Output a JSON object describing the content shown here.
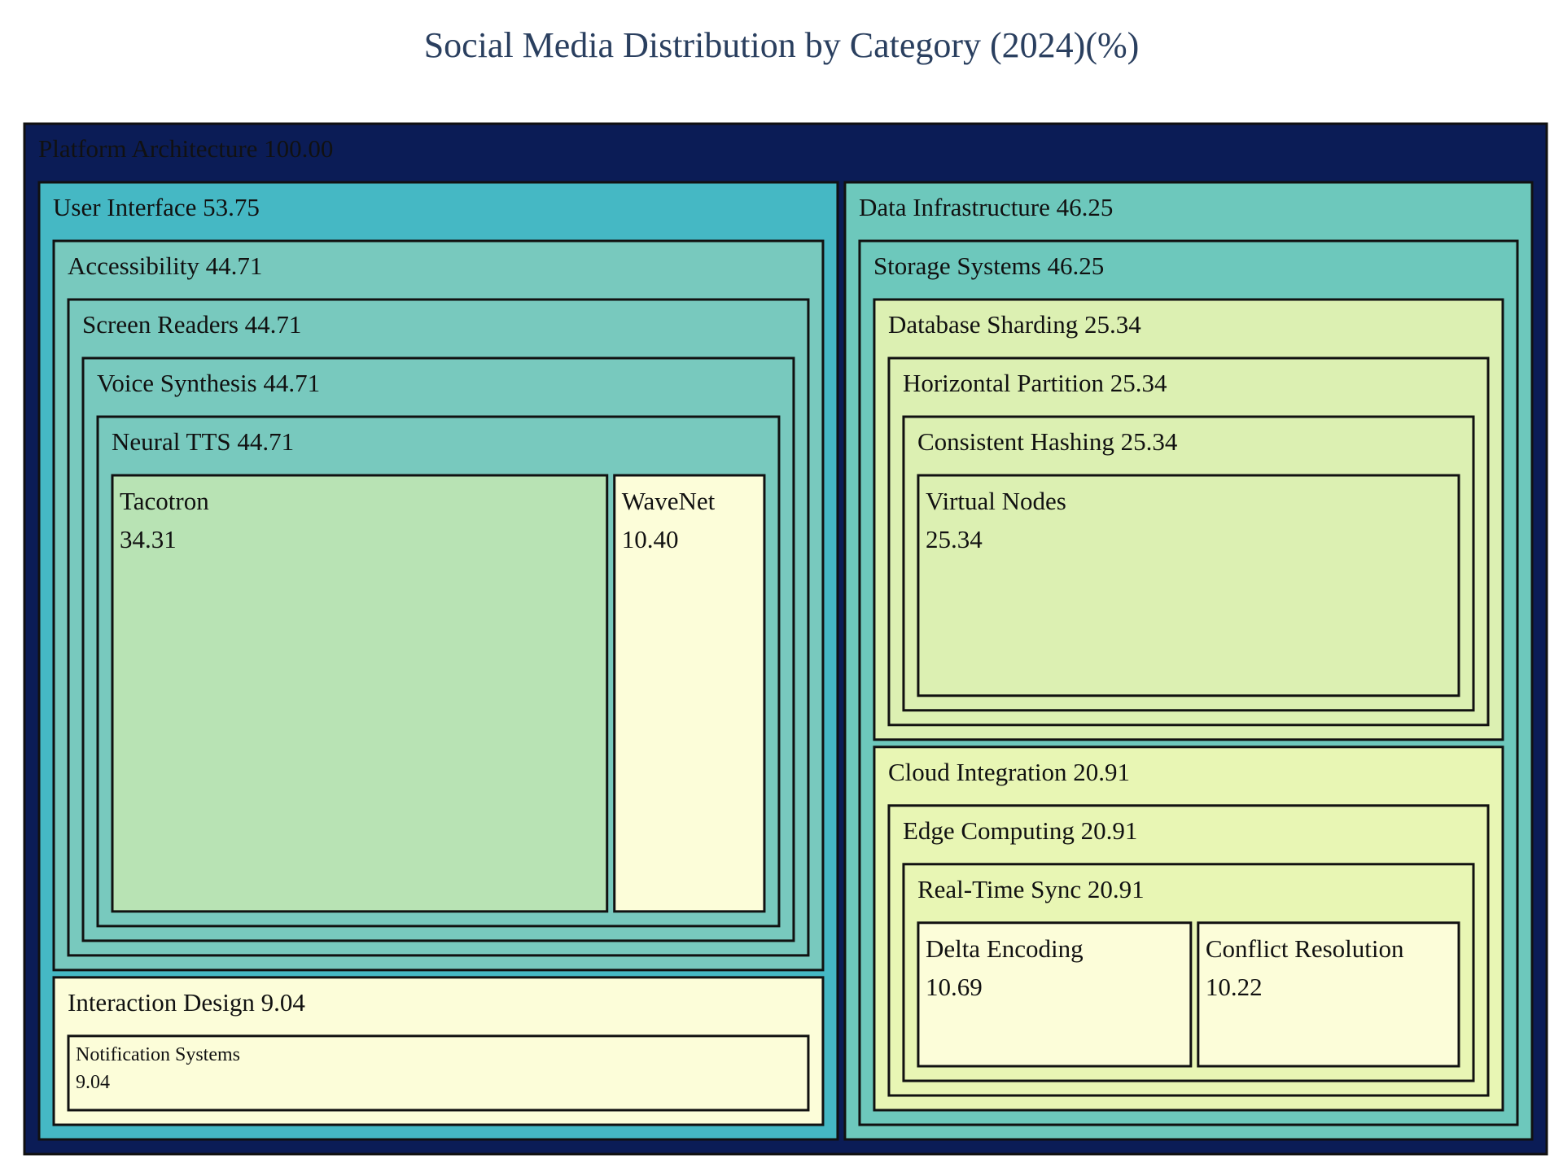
{
  "chart_data": {
    "type": "treemap",
    "title": "Social Media Distribution by Category (2024)(%)",
    "colors": {
      "root": "#0b1c56",
      "user_interface": "#45b8c4",
      "data_infrastructure": "#6dc8bc",
      "accessibility": "#78c9be",
      "storage_systems": "#6dc8bc",
      "tacotron": "#b8e3b4",
      "light_yellow": "#fcfdd9",
      "database_sharding": "#dcf0b2",
      "cloud_integration": "#e8f6b4"
    },
    "root": {
      "name": "Platform Architecture",
      "value": 100.0,
      "label": "Platform Architecture 100.00",
      "children": [
        {
          "name": "User Interface",
          "value": 53.75,
          "label": "User Interface 53.75",
          "children": [
            {
              "name": "Accessibility",
              "value": 44.71,
              "label": "Accessibility 44.71",
              "children": [
                {
                  "name": "Screen Readers",
                  "value": 44.71,
                  "label": "Screen Readers 44.71",
                  "children": [
                    {
                      "name": "Voice Synthesis",
                      "value": 44.71,
                      "label": "Voice Synthesis 44.71",
                      "children": [
                        {
                          "name": "Neural TTS",
                          "value": 44.71,
                          "label": "Neural TTS 44.71",
                          "children": [
                            {
                              "name": "Tacotron",
                              "value": 34.31,
                              "value_label": "34.31"
                            },
                            {
                              "name": "WaveNet",
                              "value": 10.4,
                              "value_label": "10.40"
                            }
                          ]
                        }
                      ]
                    }
                  ]
                }
              ]
            },
            {
              "name": "Interaction Design",
              "value": 9.04,
              "label": "Interaction Design 9.04",
              "children": [
                {
                  "name": "Notification Systems",
                  "value": 9.04,
                  "value_label": "9.04"
                }
              ]
            }
          ]
        },
        {
          "name": "Data Infrastructure",
          "value": 46.25,
          "label": "Data Infrastructure 46.25",
          "children": [
            {
              "name": "Storage Systems",
              "value": 46.25,
              "label": "Storage Systems 46.25",
              "children": [
                {
                  "name": "Database Sharding",
                  "value": 25.34,
                  "label": "Database Sharding 25.34",
                  "children": [
                    {
                      "name": "Horizontal Partition",
                      "value": 25.34,
                      "label": "Horizontal Partition 25.34",
                      "children": [
                        {
                          "name": "Consistent Hashing",
                          "value": 25.34,
                          "label": "Consistent Hashing 25.34",
                          "children": [
                            {
                              "name": "Virtual Nodes",
                              "value": 25.34,
                              "value_label": "25.34"
                            }
                          ]
                        }
                      ]
                    }
                  ]
                },
                {
                  "name": "Cloud Integration",
                  "value": 20.91,
                  "label": "Cloud Integration 20.91",
                  "children": [
                    {
                      "name": "Edge Computing",
                      "value": 20.91,
                      "label": "Edge Computing 20.91",
                      "children": [
                        {
                          "name": "Real-Time Sync",
                          "value": 20.91,
                          "label": "Real-Time Sync 20.91",
                          "children": [
                            {
                              "name": "Delta Encoding",
                              "value": 10.69,
                              "value_label": "10.69"
                            },
                            {
                              "name": "Conflict Resolution",
                              "value": 10.22,
                              "value_label": "10.22"
                            }
                          ]
                        }
                      ]
                    }
                  ]
                }
              ]
            }
          ]
        }
      ]
    }
  }
}
